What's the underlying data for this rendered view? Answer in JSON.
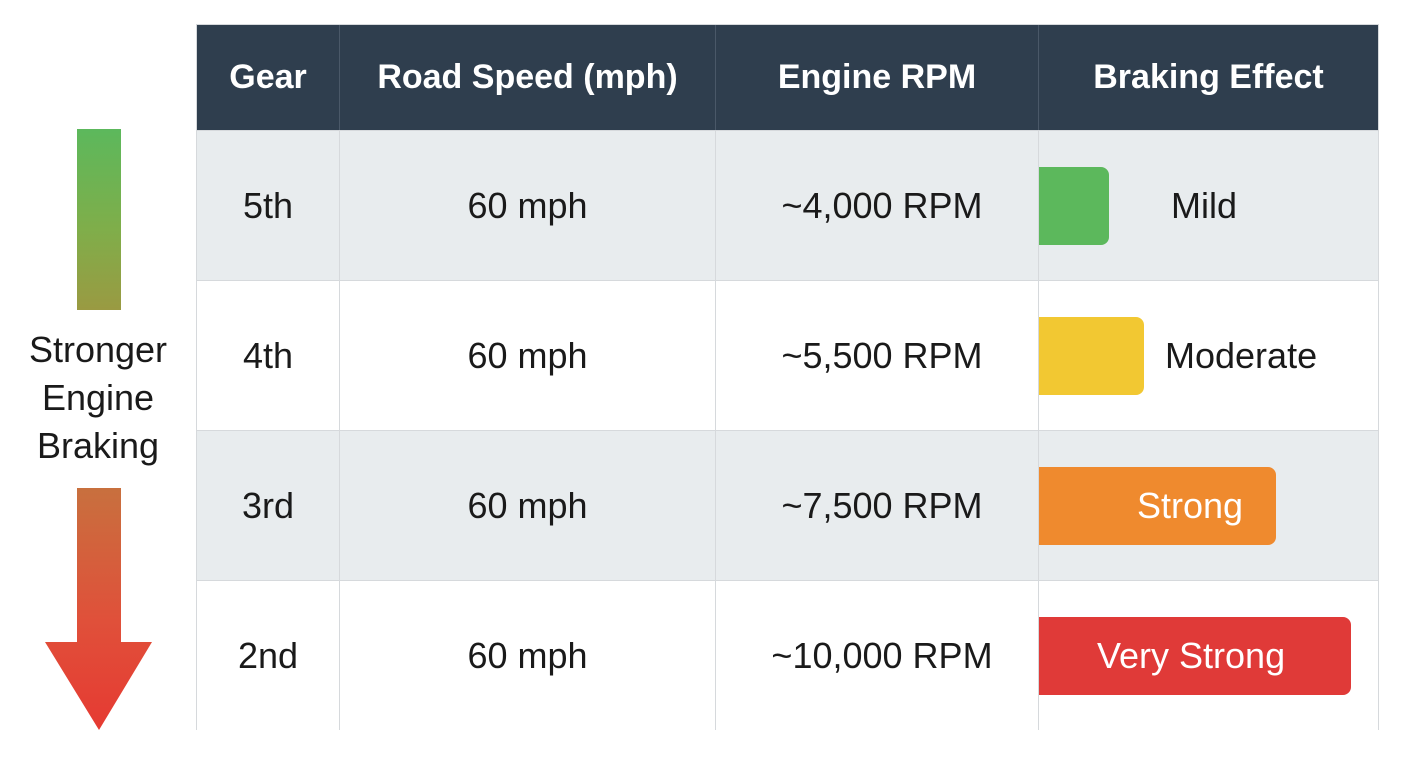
{
  "indicator": {
    "label_lines": [
      "Stronger",
      "Engine",
      "Braking"
    ]
  },
  "table": {
    "headers": [
      "Gear",
      "Road Speed (mph)",
      "Engine RPM",
      "Braking Effect"
    ],
    "rows": [
      {
        "gear": "5th",
        "speed": "60 mph",
        "rpm": "~4,000 RPM",
        "effect": "Mild",
        "effect_color": "#5cb85c",
        "level": 1
      },
      {
        "gear": "4th",
        "speed": "60 mph",
        "rpm": "~5,500 RPM",
        "effect": "Moderate",
        "effect_color": "#f2c832",
        "level": 2
      },
      {
        "gear": "3rd",
        "speed": "60 mph",
        "rpm": "~7,500 RPM",
        "effect": "Strong",
        "effect_color": "#ef8a2e",
        "level": 3
      },
      {
        "gear": "2nd",
        "speed": "60 mph",
        "rpm": "~10,000 RPM",
        "effect": "Very Strong",
        "effect_color": "#e03a38",
        "level": 4
      }
    ]
  },
  "chart_data": {
    "type": "table",
    "columns": [
      "Gear",
      "Road Speed (mph)",
      "Engine RPM",
      "Braking Effect"
    ],
    "rows": [
      [
        "5th",
        "60 mph",
        "~4,000 RPM",
        "Mild"
      ],
      [
        "4th",
        "60 mph",
        "~5,500 RPM",
        "Moderate"
      ],
      [
        "3rd",
        "60 mph",
        "~7,500 RPM",
        "Strong"
      ],
      [
        "2nd",
        "60 mph",
        "~10,000 RPM",
        "Very Strong"
      ]
    ],
    "braking_effect_levels": [
      1,
      2,
      3,
      4
    ],
    "side_annotation": "Stronger Engine Braking"
  }
}
